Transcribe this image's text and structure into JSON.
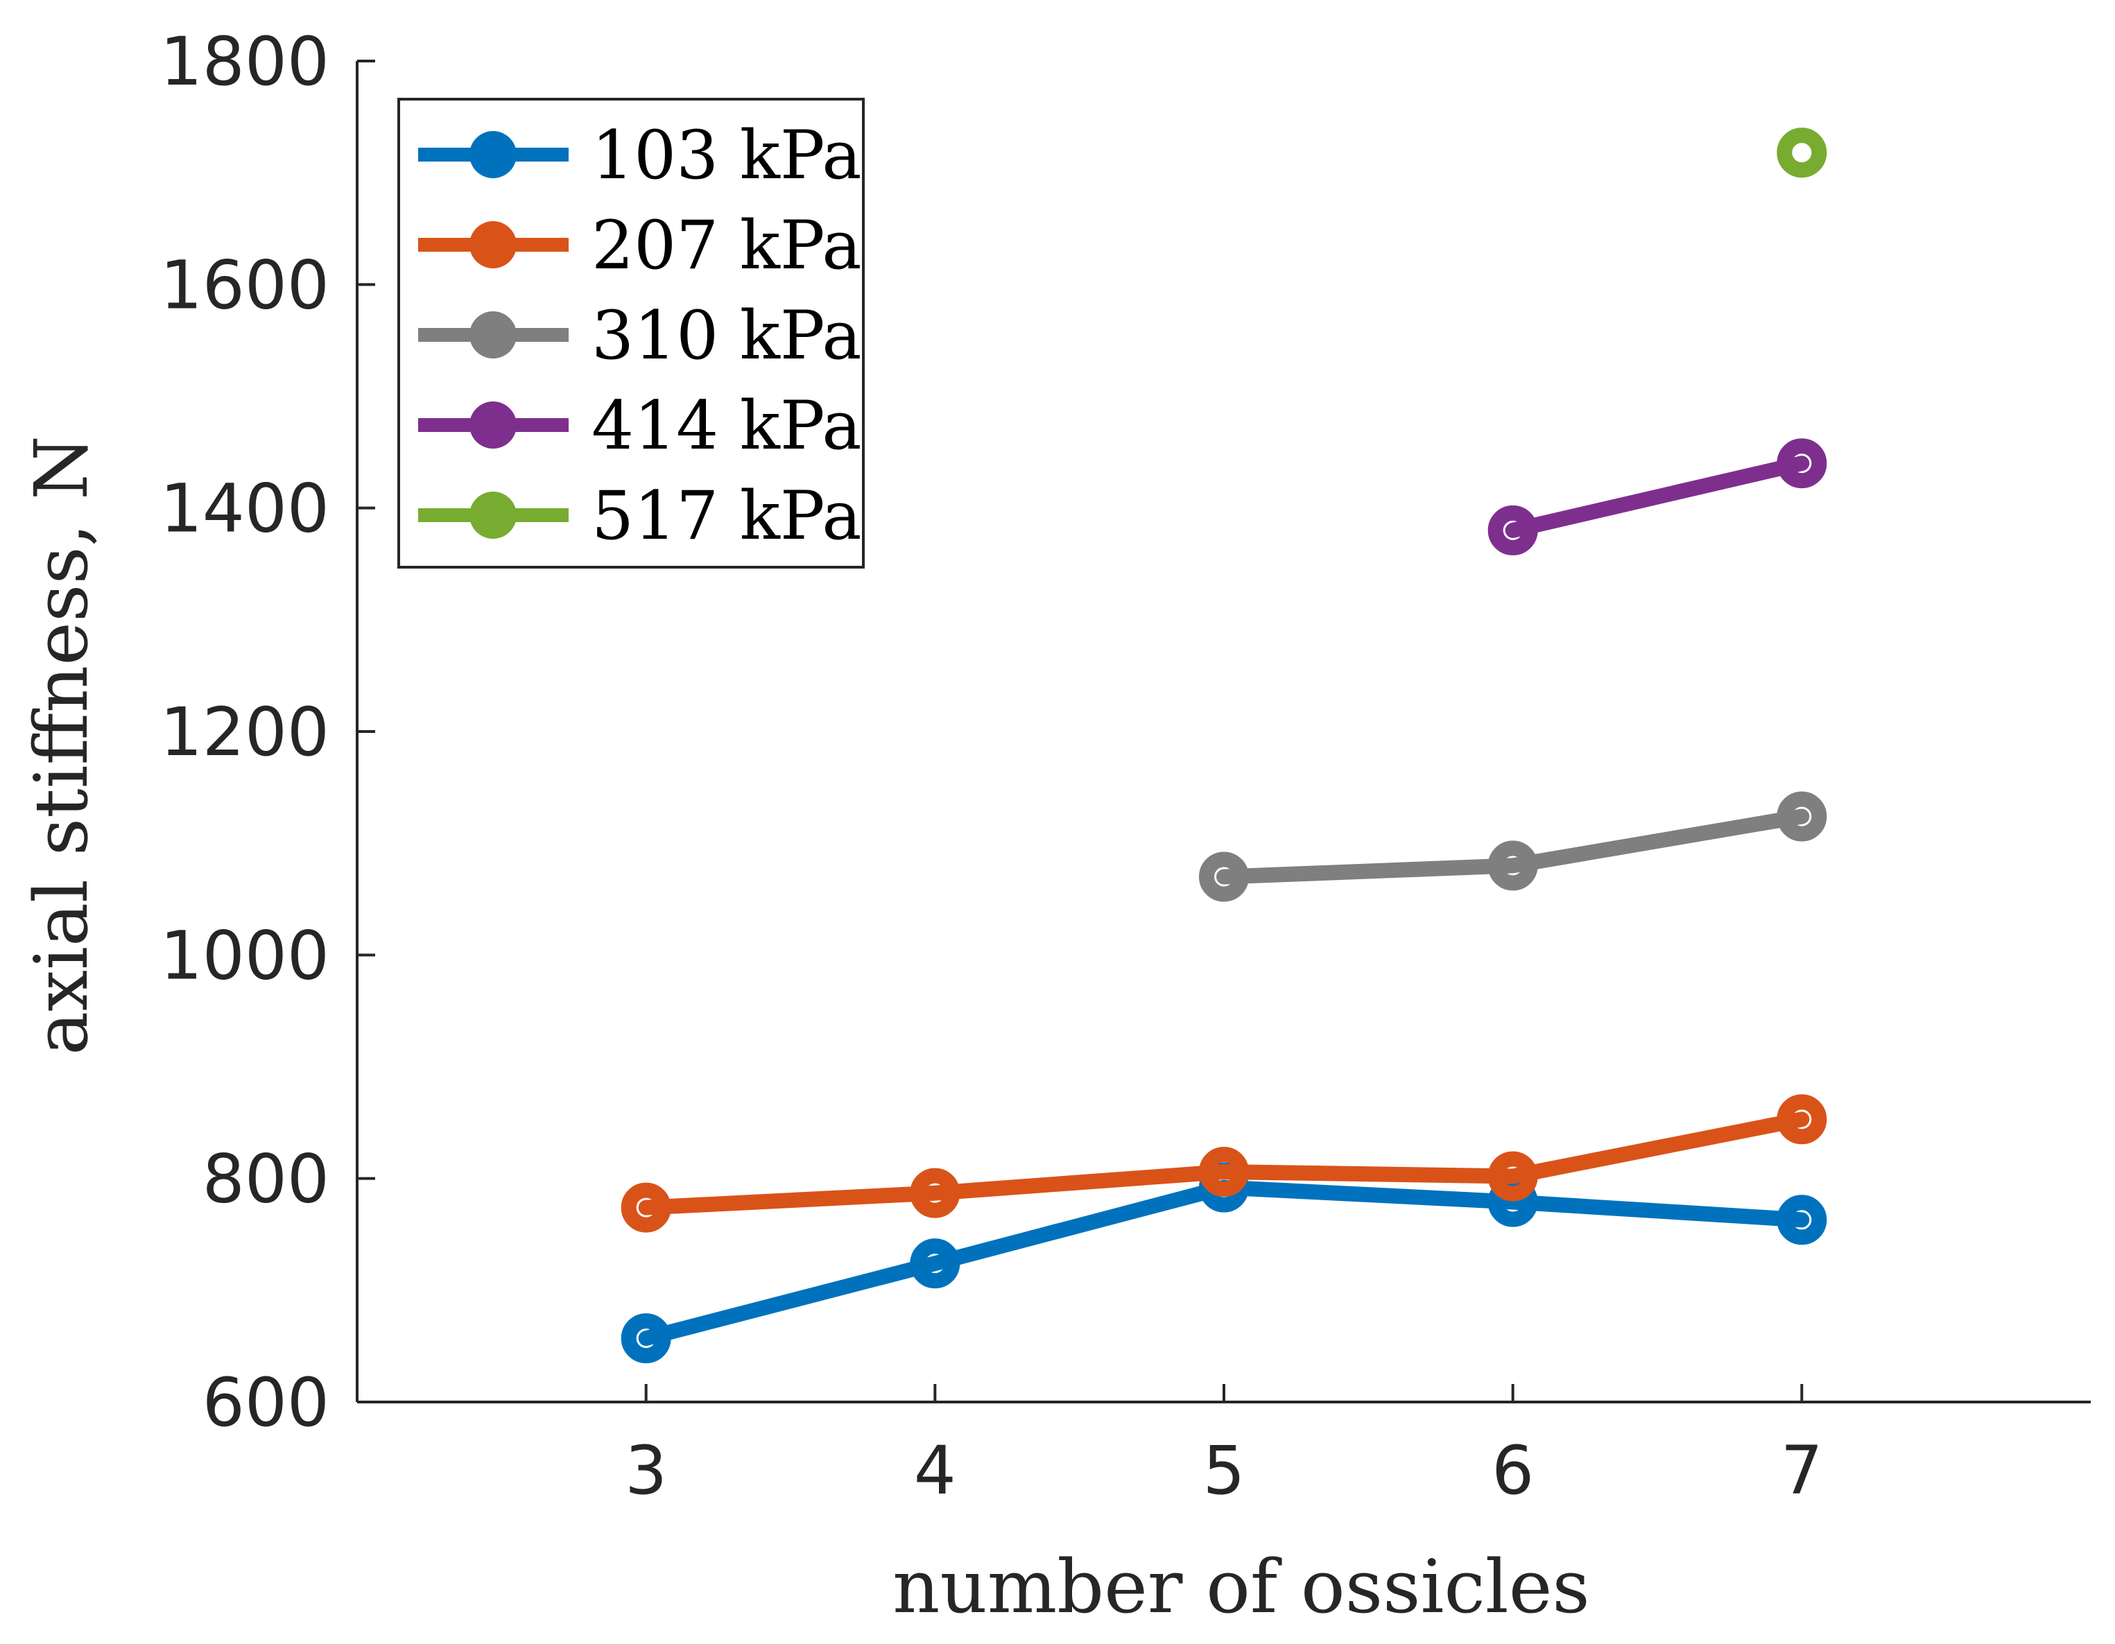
{
  "chart_data": {
    "type": "line",
    "title": "",
    "xlabel": "number of ossicles",
    "ylabel": "axial stiffness, N",
    "xlim": [
      2,
      8
    ],
    "ylim": [
      600,
      1800
    ],
    "x_ticks": [
      3,
      4,
      5,
      6,
      7
    ],
    "y_ticks": [
      600,
      800,
      1000,
      1200,
      1400,
      1600,
      1800
    ],
    "grid": false,
    "legend_position": "top-left",
    "series": [
      {
        "name": "103 kPa",
        "color": "#0072BD",
        "x": [
          3,
          4,
          5,
          6,
          7
        ],
        "values": [
          657,
          724,
          792,
          779,
          763
        ]
      },
      {
        "name": "207 kPa",
        "color": "#D95319",
        "x": [
          3,
          4,
          5,
          6,
          7
        ],
        "values": [
          774,
          787,
          806,
          802,
          853
        ]
      },
      {
        "name": "310 kPa",
        "color": "#7F7F7F",
        "x": [
          5,
          6,
          7
        ],
        "values": [
          1070,
          1080,
          1124
        ]
      },
      {
        "name": "414 kPa",
        "color": "#7E2F8E",
        "x": [
          6,
          7
        ],
        "values": [
          1380,
          1440
        ]
      },
      {
        "name": "517 kPa",
        "color": "#77AC30",
        "x": [
          7
        ],
        "values": [
          1718
        ]
      }
    ]
  }
}
